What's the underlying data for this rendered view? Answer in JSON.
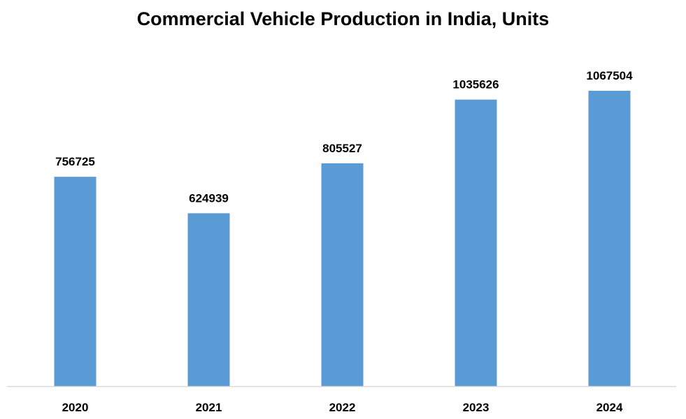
{
  "chart_data": {
    "type": "bar",
    "title": "Commercial Vehicle Production in India, Units",
    "xlabel": "",
    "ylabel": "",
    "categories": [
      "2020",
      "2021",
      "2022",
      "2023",
      "2024"
    ],
    "values": [
      756725,
      624939,
      805527,
      1035626,
      1067504
    ],
    "data_labels": [
      "756725",
      "624939",
      "805527",
      "1035626",
      "1067504"
    ],
    "ylim": [
      0,
      1200000
    ],
    "y_axis_visible": false,
    "grid": false,
    "legend": "none",
    "bar_color": "#5B9BD5",
    "axis_color": "#D9D9D9"
  }
}
